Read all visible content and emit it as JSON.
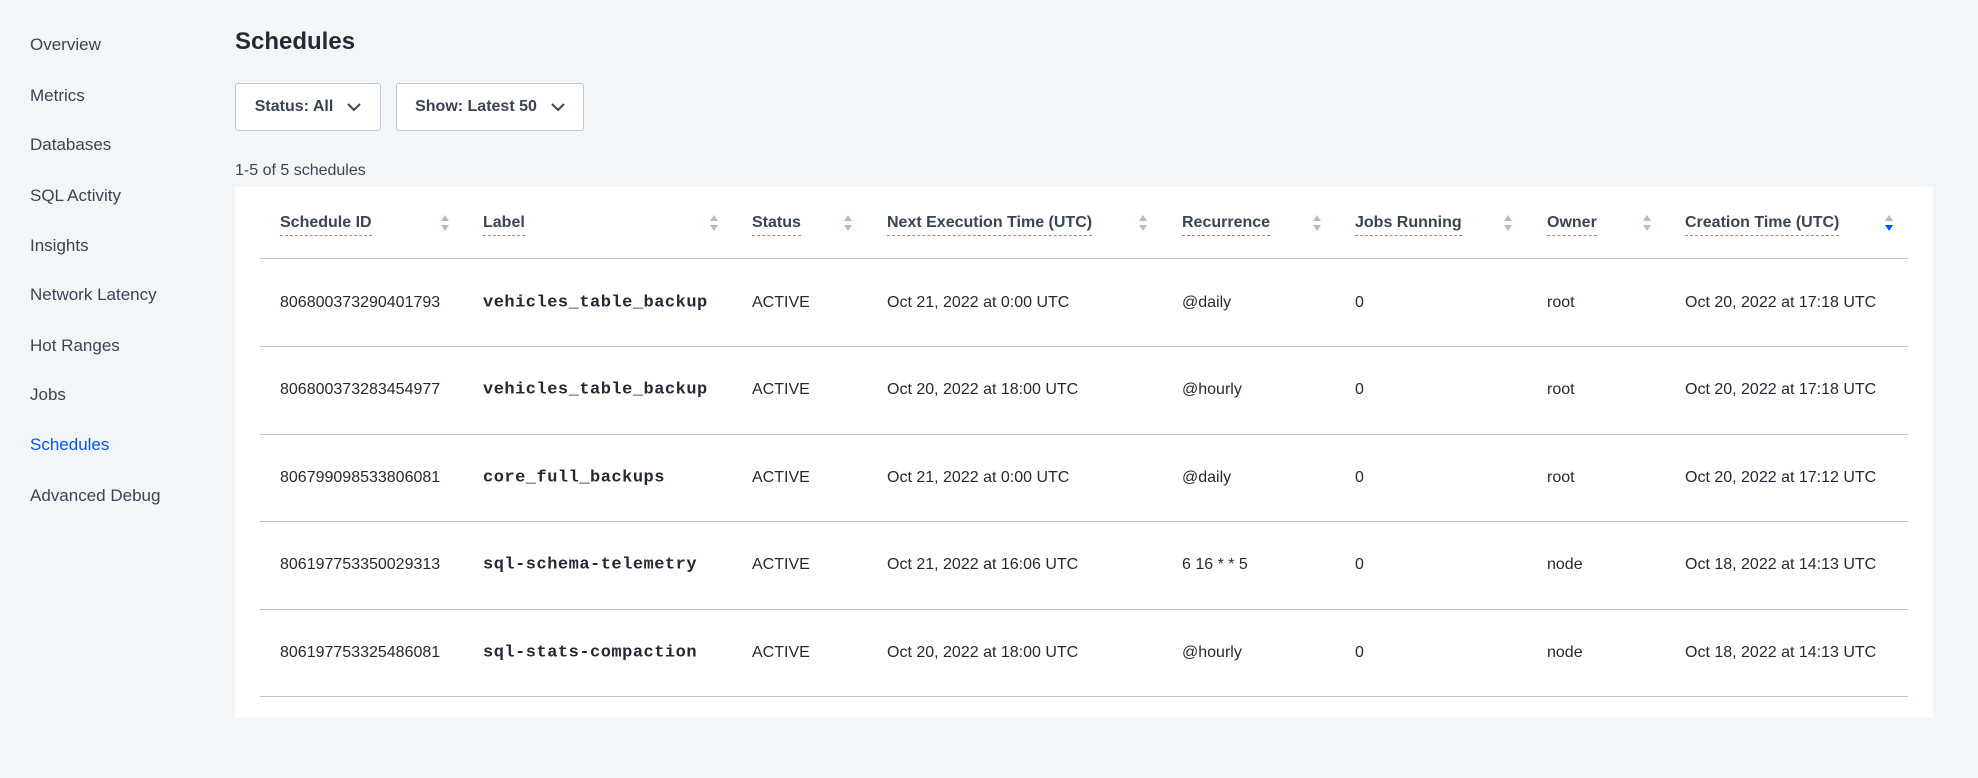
{
  "sidebar": {
    "items": [
      {
        "label": "Overview",
        "active": false
      },
      {
        "label": "Metrics",
        "active": false
      },
      {
        "label": "Databases",
        "active": false
      },
      {
        "label": "SQL Activity",
        "active": false
      },
      {
        "label": "Insights",
        "active": false
      },
      {
        "label": "Network Latency",
        "active": false
      },
      {
        "label": "Hot Ranges",
        "active": false
      },
      {
        "label": "Jobs",
        "active": false
      },
      {
        "label": "Schedules",
        "active": true
      },
      {
        "label": "Advanced Debug",
        "active": false
      }
    ]
  },
  "page": {
    "title": "Schedules",
    "status_filter": "Status: All",
    "show_filter": "Show: Latest 50",
    "count": "1-5 of 5 schedules"
  },
  "table": {
    "columns": [
      "Schedule ID",
      "Label",
      "Status",
      "Next Execution Time (UTC)",
      "Recurrence",
      "Jobs Running",
      "Owner",
      "Creation Time (UTC)"
    ],
    "sorted_column": "Creation Time (UTC)",
    "sort_direction": "descending",
    "rows": [
      [
        "806800373290401793",
        "vehicles_table_backup",
        "ACTIVE",
        "Oct 21, 2022 at 0:00 UTC",
        "@daily",
        "0",
        "root",
        "Oct 20, 2022 at 17:18 UTC"
      ],
      [
        "806800373283454977",
        "vehicles_table_backup",
        "ACTIVE",
        "Oct 20, 2022 at 18:00 UTC",
        "@hourly",
        "0",
        "root",
        "Oct 20, 2022 at 17:18 UTC"
      ],
      [
        "806799098533806081",
        "core_full_backups",
        "ACTIVE",
        "Oct 21, 2022 at 0:00 UTC",
        "@daily",
        "0",
        "root",
        "Oct 20, 2022 at 17:12 UTC"
      ],
      [
        "806197753350029313",
        "sql-schema-telemetry",
        "ACTIVE",
        "Oct 21, 2022 at 16:06 UTC",
        "6 16 * * 5",
        "0",
        "node",
        "Oct 18, 2022 at 14:13 UTC"
      ],
      [
        "806197753325486081",
        "sql-stats-compaction",
        "ACTIVE",
        "Oct 20, 2022 at 18:00 UTC",
        "@hourly",
        "0",
        "node",
        "Oct 18, 2022 at 14:13 UTC"
      ]
    ]
  },
  "colors": {
    "accent": "#0055ff",
    "sort_inactive": "#b4bbcc"
  }
}
